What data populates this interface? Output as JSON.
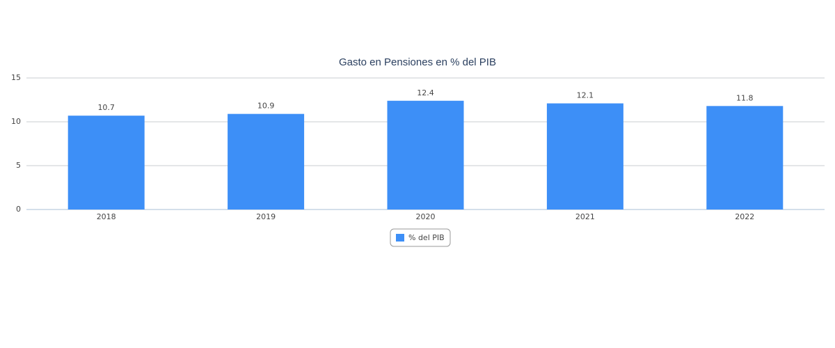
{
  "chart_data": {
    "type": "bar",
    "title": "Gasto en Pensiones en % del PIB",
    "categories": [
      "2018",
      "2019",
      "2020",
      "2021",
      "2022"
    ],
    "series": [
      {
        "name": "% del PIB",
        "color": "#3d8ff7",
        "values": [
          10.7,
          10.9,
          12.4,
          12.1,
          11.8
        ]
      }
    ],
    "ylim": [
      0,
      15
    ],
    "yticks": [
      0,
      5,
      10,
      15
    ],
    "grid": true,
    "data_labels": true,
    "legend": "bottom"
  }
}
